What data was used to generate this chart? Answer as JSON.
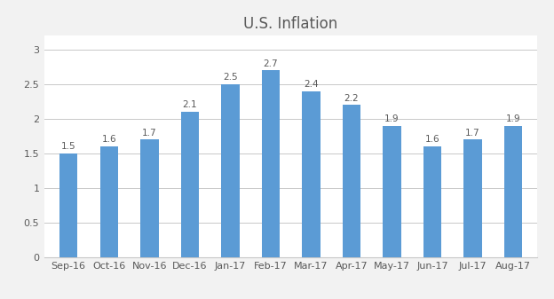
{
  "categories": [
    "Sep-16",
    "Oct-16",
    "Nov-16",
    "Dec-16",
    "Jan-17",
    "Feb-17",
    "Mar-17",
    "Apr-17",
    "May-17",
    "Jun-17",
    "Jul-17",
    "Aug-17"
  ],
  "values": [
    1.5,
    1.6,
    1.7,
    2.1,
    2.5,
    2.7,
    2.4,
    2.2,
    1.9,
    1.6,
    1.7,
    1.9
  ],
  "bar_color": "#5B9BD5",
  "title": "U.S. Inflation",
  "title_fontsize": 12,
  "ylim": [
    0,
    3.2
  ],
  "yticks": [
    0,
    0.5,
    1.0,
    1.5,
    2.0,
    2.5,
    3.0
  ],
  "ytick_labels": [
    "0",
    "0.5",
    "1",
    "1.5",
    "2",
    "2.5",
    "3"
  ],
  "background_color": "#f2f2f2",
  "plot_bg_color": "#ffffff",
  "grid_color": "#c8c8c8",
  "label_fontsize": 7.5,
  "tick_fontsize": 8,
  "bar_width": 0.45,
  "label_color": "#595959",
  "tick_color": "#595959"
}
